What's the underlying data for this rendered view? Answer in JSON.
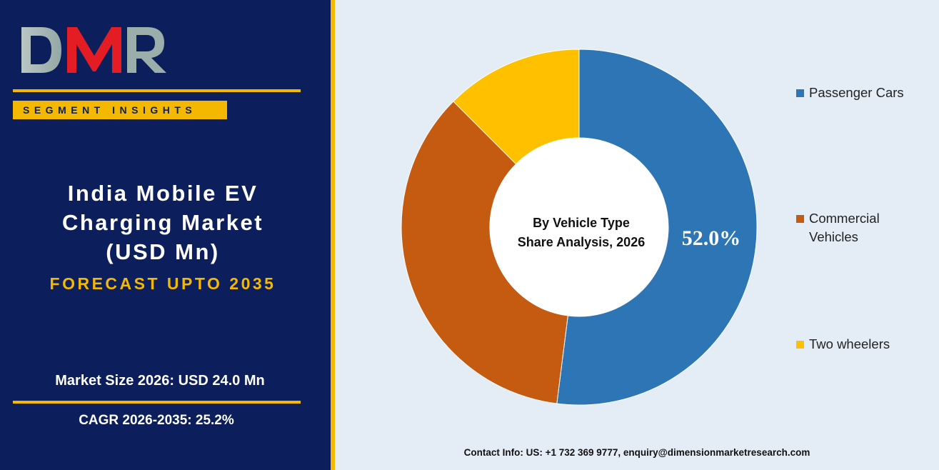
{
  "brand": {
    "logo_text": "DMR",
    "segment_badge": "SEGMENT INSIGHTS"
  },
  "report": {
    "title_lines": [
      "India Mobile EV",
      "Charging Market",
      "(USD Mn)"
    ],
    "forecast": "FORECAST UPTO 2035",
    "market_size": "Market Size 2026: USD 24.0 Mn",
    "cagr": "CAGR 2026-2035: 25.2%"
  },
  "chart_data": {
    "type": "pie",
    "variant": "donut",
    "title": "By Vehicle Type Share Analysis, 2026",
    "center_label_lines": [
      "By Vehicle Type",
      "Share Analysis, 2026"
    ],
    "categories": [
      "Passenger Cars",
      "Commercial Vehicles",
      "Two wheelers"
    ],
    "values": [
      52.0,
      35.5,
      12.5
    ],
    "data_labels": [
      "52.0%",
      "",
      ""
    ],
    "colors": [
      "#2e75b6",
      "#c55a11",
      "#ffc000"
    ],
    "legend_position": "right"
  },
  "legend": {
    "items": [
      {
        "label": "Passenger Cars",
        "color": "#2e75b6"
      },
      {
        "label": "Commercial Vehicles",
        "lines": [
          "Commercial",
          "Vehicles"
        ],
        "color": "#c55a11"
      },
      {
        "label": "Two wheelers",
        "color": "#ffc000"
      }
    ]
  },
  "footer": {
    "contact": "Contact Info: US: +1 732 369 9777, enquiry@dimensionmarketresearch.com"
  },
  "colors": {
    "navy": "#0c1f5c",
    "gold": "#f5b800",
    "background": "#e4ecf5",
    "logo_red": "#e31d23",
    "logo_grey": "#a4b6b3"
  }
}
